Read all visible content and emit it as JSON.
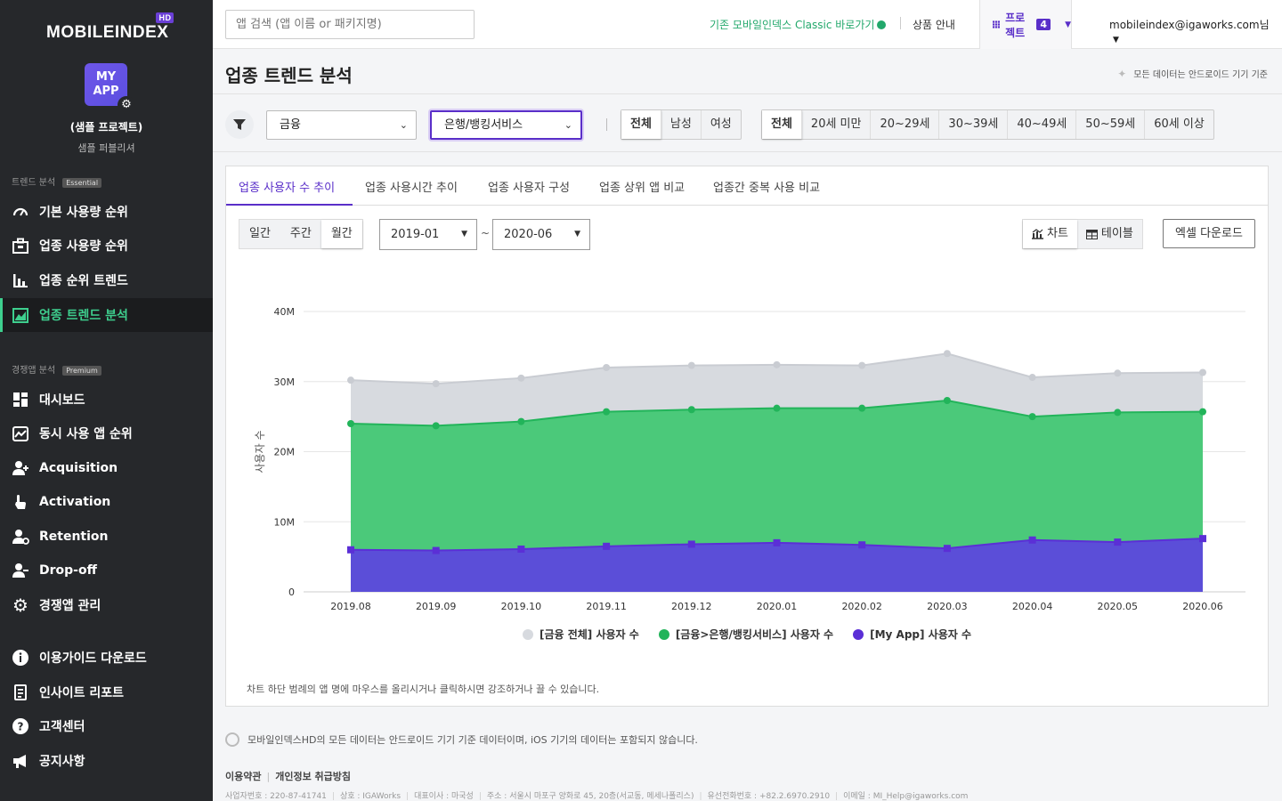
{
  "brand": {
    "logo": "MOBILEINDEX",
    "logo_badge": "HD"
  },
  "project": {
    "icon_text": "MY APP",
    "name": "(샘플 프로젝트)",
    "subtitle": "샘플 퍼블리셔"
  },
  "sidebar": {
    "sections": [
      {
        "label": "트렌드 분석",
        "badge": "Essential"
      },
      {
        "label": "경쟁앱 분석",
        "badge": "Premium"
      }
    ],
    "items": [
      {
        "label": "기본 사용량 순위",
        "icon": "gauge-icon"
      },
      {
        "label": "업종 사용량 순위",
        "icon": "briefcase-icon"
      },
      {
        "label": "업종 순위 트렌드",
        "icon": "bar-chart-icon"
      },
      {
        "label": "업종 트렌드 분석",
        "icon": "area-chart-icon",
        "active": true
      },
      {
        "label": "대시보드",
        "icon": "dashboard-icon"
      },
      {
        "label": "동시 사용 앱 순위",
        "icon": "trend-icon"
      },
      {
        "label": "Acquisition",
        "icon": "user-plus-icon"
      },
      {
        "label": "Activation",
        "icon": "hand-pointer-icon"
      },
      {
        "label": "Retention",
        "icon": "user-refresh-icon"
      },
      {
        "label": "Drop-off",
        "icon": "user-minus-icon"
      },
      {
        "label": "경쟁앱 관리",
        "icon": "gear-icon"
      },
      {
        "label": "이용가이드 다운로드",
        "icon": "info-icon"
      },
      {
        "label": "인사이트 리포트",
        "icon": "report-icon"
      },
      {
        "label": "고객센터",
        "icon": "question-icon"
      },
      {
        "label": "공지사항",
        "icon": "megaphone-icon"
      }
    ]
  },
  "topbar": {
    "search_placeholder": "앱 검색 (앱 이름 or 패키지명)",
    "classic_link": "기존 모바일인덱스 Classic 바로가기",
    "product_info": "상품 안내",
    "project_label": "프로젝트",
    "project_count": "4",
    "user_email": "mobileindex@igaworks.com님"
  },
  "header": {
    "title": "업종 트렌드 분석",
    "android_note": "모든 데이터는 안드로이드 기기 기준"
  },
  "filters": {
    "category": "금융",
    "subcategory": "은행/뱅킹서비스",
    "gender": [
      "전체",
      "남성",
      "여성"
    ],
    "gender_selected": 0,
    "age": [
      "전체",
      "20세 미만",
      "20~29세",
      "30~39세",
      "40~49세",
      "50~59세",
      "60세 이상"
    ],
    "age_selected": 0
  },
  "tabs": [
    "업종 사용자 수 추이",
    "업종 사용시간 추이",
    "업종 사용자 구성",
    "업종 상위 앱 비교",
    "업종간 중복 사용 비교"
  ],
  "period": {
    "options": [
      "일간",
      "주간",
      "월간"
    ],
    "selected": 2,
    "start": "2019-01",
    "end": "2020-06",
    "tilde": "~"
  },
  "view": {
    "chart": "차트",
    "table": "테이블",
    "excel": "엑셀 다운로드"
  },
  "chart_data": {
    "type": "area",
    "ylabel": "사용자 수",
    "ylim": [
      0,
      40000000
    ],
    "yticks": [
      "0",
      "10M",
      "20M",
      "30M",
      "40M"
    ],
    "categories": [
      "2019.08",
      "2019.09",
      "2019.10",
      "2019.11",
      "2019.12",
      "2020.01",
      "2020.02",
      "2020.03",
      "2020.04",
      "2020.05",
      "2020.06"
    ],
    "series": [
      {
        "name": "[금융 전체] 사용자 수",
        "color": "#d7dadf",
        "values": [
          30200000,
          29700000,
          30500000,
          32000000,
          32300000,
          32400000,
          32300000,
          34000000,
          30600000,
          31200000,
          31300000
        ]
      },
      {
        "name": "[금융>은행/뱅킹서비스] 사용자 수",
        "color": "#4bc97a",
        "values": [
          24000000,
          23700000,
          24300000,
          25700000,
          26000000,
          26200000,
          26200000,
          27300000,
          25000000,
          25600000,
          25700000
        ]
      },
      {
        "name": "[My App] 사용자 수",
        "color": "#5b4ed8",
        "values": [
          6000000,
          5900000,
          6100000,
          6500000,
          6800000,
          7000000,
          6700000,
          6200000,
          7400000,
          7100000,
          7600000
        ]
      }
    ],
    "legend": "bottom-center",
    "grid": true
  },
  "chart_note": "차트 하단 범례의 앱 명에 마우스를 올리시거나 클릭하시면 강조하거나 끌 수 있습니다.",
  "footer": {
    "note": "모바일인덱스HD의 모든 데이터는 안드로이드 기기 기준 데이터이며, iOS 기기의 데이터는 포함되지 않습니다.",
    "links": [
      "이용약관",
      "개인정보 취급방침"
    ],
    "business": [
      "사업자번호 : 220-87-41741",
      "상호 : IGAWorks",
      "대표이사 : 마국성",
      "주소 : 서울시 마포구 양화로 45, 20층(서교동, 메세나폴리스)",
      "유선전화번호 : +82.2.6970.2910",
      "이메일 : MI_Help@igaworks.com"
    ]
  }
}
